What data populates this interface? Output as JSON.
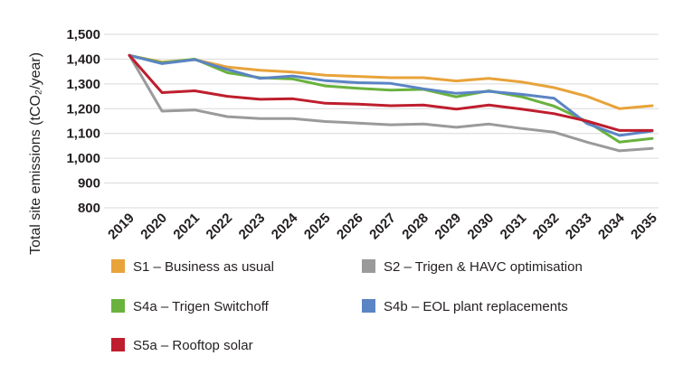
{
  "chart_data": {
    "type": "line",
    "ylabel": "Total site emissions (tCO₂/year)",
    "ylim": [
      800,
      1500
    ],
    "yticks": [
      "1,500",
      "1,400",
      "1,300",
      "1,200",
      "1,100",
      "1,000",
      "900",
      "800"
    ],
    "ytick_values": [
      1500,
      1400,
      1300,
      1200,
      1100,
      1000,
      900,
      800
    ],
    "grid": "horizontal",
    "legend_position": "bottom",
    "x": [
      "2019",
      "2020",
      "2021",
      "2022",
      "2023",
      "2024",
      "2025",
      "2026",
      "2027",
      "2028",
      "2029",
      "2030",
      "2031",
      "2032",
      "2033",
      "2034",
      "2035"
    ],
    "series": [
      {
        "name": "S1 – Business as usual",
        "color": "#e8a33a",
        "values": [
          1415,
          1388,
          1398,
          1368,
          1355,
          1348,
          1335,
          1330,
          1325,
          1325,
          1312,
          1322,
          1308,
          1285,
          1250,
          1200,
          1212
        ]
      },
      {
        "name": "S2 – Trigen & HAVC optimisation",
        "color": "#9a9a9a",
        "values": [
          1415,
          1190,
          1195,
          1168,
          1160,
          1160,
          1148,
          1142,
          1135,
          1138,
          1125,
          1138,
          1120,
          1105,
          1065,
          1030,
          1040
        ]
      },
      {
        "name": "S4a – Trigen Switchoff",
        "color": "#6ab23e",
        "values": [
          1415,
          1385,
          1400,
          1345,
          1325,
          1320,
          1292,
          1282,
          1275,
          1278,
          1248,
          1272,
          1248,
          1210,
          1148,
          1065,
          1080
        ]
      },
      {
        "name": "S4b – EOL plant replacements",
        "color": "#5b84c4",
        "values": [
          1415,
          1382,
          1398,
          1358,
          1322,
          1332,
          1313,
          1305,
          1302,
          1280,
          1262,
          1270,
          1258,
          1242,
          1140,
          1092,
          1110
        ]
      },
      {
        "name": "S5a – Rooftop solar",
        "color": "#be1e2d",
        "values": [
          1415,
          1265,
          1272,
          1250,
          1238,
          1240,
          1222,
          1218,
          1212,
          1215,
          1198,
          1215,
          1198,
          1180,
          1150,
          1112,
          1112
        ]
      }
    ]
  }
}
